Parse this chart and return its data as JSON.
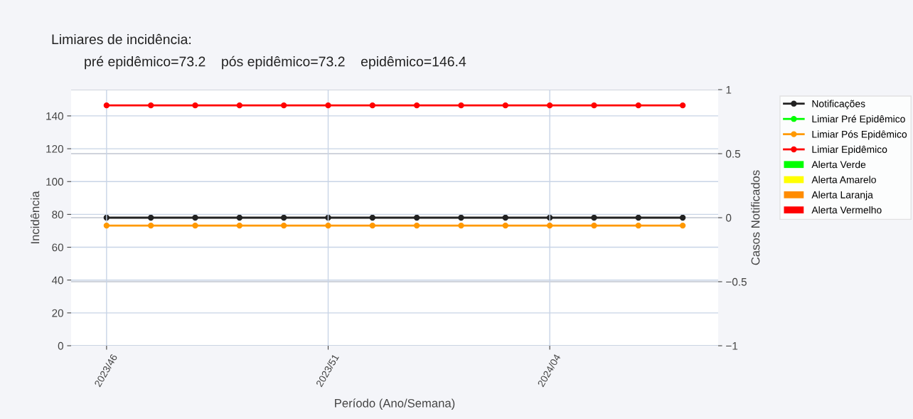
{
  "chart_data": {
    "type": "line",
    "title": "Limiares de incidência:",
    "subtitle": "pré epidêmico=73.2    pós epidêmico=73.2    epidêmico=146.4",
    "xlabel": "Período (Ano/Semana)",
    "ylabel": "Incidência",
    "y2label": "Casos Notificados",
    "categories": [
      "2023/46",
      null,
      null,
      null,
      null,
      "2023/51",
      null,
      null,
      null,
      null,
      "2024/04",
      null,
      null,
      null
    ],
    "series": [
      {
        "name": "Notificações",
        "color": "#222222",
        "axis": "y2",
        "values": [
          0,
          0,
          0,
          0,
          0,
          0,
          0,
          0,
          0,
          0,
          0,
          0,
          0,
          0
        ]
      },
      {
        "name": "Limiar Pré Epidêmico",
        "color": "#00ff00",
        "values": [
          null,
          null,
          null,
          null,
          null,
          null,
          null,
          null,
          null,
          null,
          null,
          null,
          null,
          null
        ]
      },
      {
        "name": "Limiar Pós Epidêmico",
        "color": "#ff9900",
        "values": [
          73.2,
          73.2,
          73.2,
          73.2,
          73.2,
          73.2,
          73.2,
          73.2,
          73.2,
          73.2,
          73.2,
          73.2,
          73.2,
          73.2
        ]
      },
      {
        "name": "Limiar Epidêmico",
        "color": "#ff0000",
        "values": [
          146.4,
          146.4,
          146.4,
          146.4,
          146.4,
          146.4,
          146.4,
          146.4,
          146.4,
          146.4,
          146.4,
          146.4,
          146.4,
          146.4
        ]
      },
      {
        "name": "Alerta Verde",
        "type": "bar",
        "color": "#00ff00",
        "values": [
          0,
          0,
          0,
          0,
          0,
          0,
          0,
          0,
          0,
          0,
          0,
          0,
          0,
          0
        ]
      },
      {
        "name": "Alerta Amarelo",
        "type": "bar",
        "color": "#ffff00",
        "values": [
          0,
          0,
          0,
          0,
          0,
          0,
          0,
          0,
          0,
          0,
          0,
          0,
          0,
          0
        ]
      },
      {
        "name": "Alerta Laranja",
        "type": "bar",
        "color": "#ff8c00",
        "values": [
          0,
          0,
          0,
          0,
          0,
          0,
          0,
          0,
          0,
          0,
          0,
          0,
          0,
          0
        ]
      },
      {
        "name": "Alerta Vermelho",
        "type": "bar",
        "color": "#ff0000",
        "values": [
          0,
          0,
          0,
          0,
          0,
          0,
          0,
          0,
          0,
          0,
          0,
          0,
          0,
          0
        ]
      }
    ],
    "ylim": [
      0,
      156
    ],
    "yticks": [
      0,
      20,
      40,
      60,
      80,
      100,
      120,
      140
    ],
    "y2lim": [
      -1,
      1
    ],
    "y2ticks": [
      {
        "value": -1,
        "label": "−1"
      },
      {
        "value": -0.5,
        "label": "−0.5"
      },
      0,
      0.5,
      1
    ],
    "grid": true,
    "legend": "right",
    "marker": "circle",
    "line_style": "solid"
  }
}
